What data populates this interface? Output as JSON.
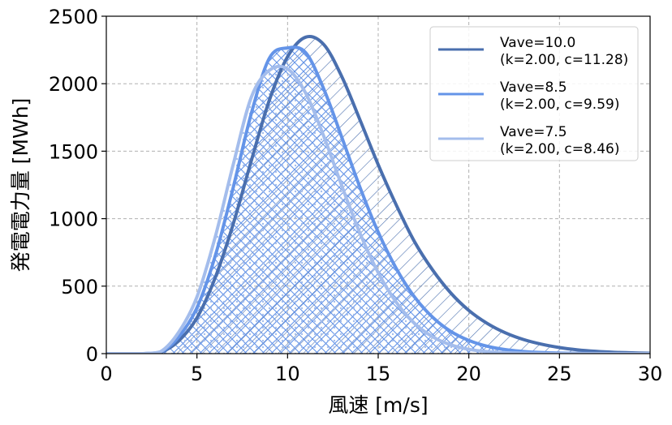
{
  "chart_data": {
    "type": "area",
    "xlabel": "風速 [m/s]",
    "ylabel": "発電電力量 [MWh]",
    "xlim": [
      0,
      30
    ],
    "ylim": [
      0,
      2500
    ],
    "xticks": [
      0,
      5,
      10,
      15,
      20,
      25,
      30
    ],
    "yticks": [
      0,
      500,
      1000,
      1500,
      2000,
      2500
    ],
    "grid": true,
    "legend_position": "top-right",
    "x": [
      0,
      1,
      2,
      3,
      4,
      5,
      6,
      7,
      8,
      9,
      10,
      11,
      12,
      13,
      14,
      15,
      16,
      17,
      18,
      19,
      20,
      21,
      22,
      23,
      24,
      25,
      26,
      27,
      28,
      29,
      30
    ],
    "series": [
      {
        "name": "Vave=10.0",
        "params": "(k=2.00, c=11.28)",
        "color": "#4a6fae",
        "hatch": "diagonal",
        "values": [
          0,
          0,
          0,
          10,
          95,
          265,
          560,
          960,
          1430,
          1880,
          2200,
          2345,
          2290,
          2050,
          1730,
          1400,
          1100,
          830,
          620,
          450,
          320,
          225,
          155,
          105,
          70,
          45,
          28,
          17,
          10,
          6,
          3
        ]
      },
      {
        "name": "Vave=8.5",
        "params": "(k=2.00, c=9.59)",
        "color": "#6494e8",
        "hatch": "crosshatch",
        "values": [
          0,
          0,
          0,
          12,
          125,
          340,
          720,
          1230,
          1780,
          2190,
          2265,
          2230,
          1960,
          1600,
          1230,
          900,
          630,
          420,
          270,
          165,
          98,
          55,
          30,
          16,
          8,
          4,
          2,
          1,
          0,
          0,
          0
        ]
      },
      {
        "name": "Vave=7.5",
        "params": "(k=2.00, c=8.46)",
        "color": "#a4bdec",
        "hatch": "dots",
        "values": [
          0,
          0,
          0,
          15,
          160,
          420,
          860,
          1400,
          1900,
          2100,
          2110,
          1930,
          1610,
          1240,
          890,
          600,
          380,
          225,
          125,
          65,
          32,
          15,
          7,
          3,
          1,
          0,
          0,
          0,
          0,
          0,
          0
        ]
      }
    ]
  }
}
